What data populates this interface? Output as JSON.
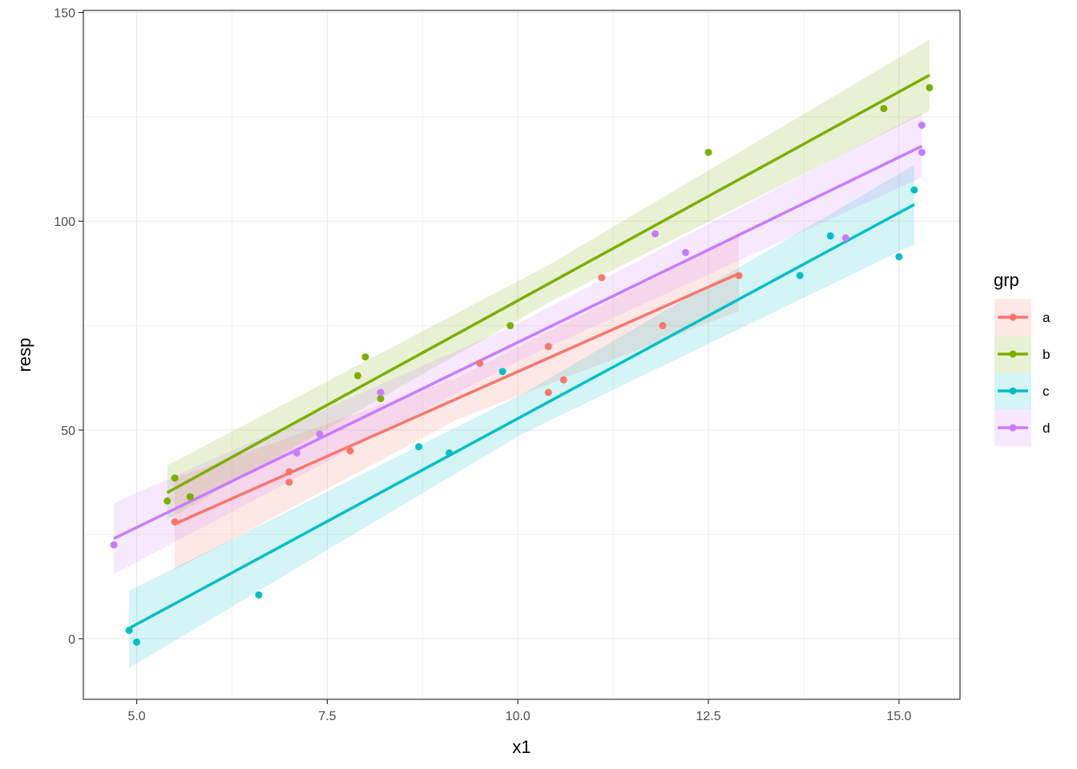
{
  "chart_data": {
    "type": "scatter",
    "title": "",
    "xlabel": "x1",
    "ylabel": "resp",
    "xlim": [
      4.3,
      15.8
    ],
    "ylim": [
      -14.5,
      150.5
    ],
    "xticks": [
      5.0,
      7.5,
      10.0,
      12.5,
      15.0
    ],
    "xtick_labels": [
      "5.0",
      "7.5",
      "10.0",
      "12.5",
      "15.0"
    ],
    "yticks": [
      0,
      50,
      100,
      150
    ],
    "ytick_labels": [
      "0",
      "50",
      "100",
      "150"
    ],
    "grid": true,
    "legend": {
      "title": "grp",
      "position": "right"
    },
    "series": [
      {
        "name": "a",
        "color": "#F8766D",
        "points": [
          [
            5.5,
            28
          ],
          [
            7.0,
            37.5
          ],
          [
            7.0,
            40
          ],
          [
            7.8,
            45
          ],
          [
            9.5,
            66
          ],
          [
            10.4,
            70
          ],
          [
            10.4,
            59
          ],
          [
            10.6,
            62
          ],
          [
            11.1,
            86.5
          ],
          [
            11.9,
            75
          ],
          [
            12.9,
            87
          ]
        ],
        "fit": {
          "x": [
            5.5,
            12.9
          ],
          "y": [
            27.5,
            87.5
          ]
        },
        "band": {
          "x": [
            5.5,
            9.2,
            12.9
          ],
          "lower": [
            16.5,
            52.5,
            78.5
          ],
          "upper": [
            38.5,
            62.5,
            96.5
          ]
        }
      },
      {
        "name": "b",
        "color": "#7CAE00",
        "points": [
          [
            5.4,
            33
          ],
          [
            5.5,
            38.5
          ],
          [
            5.7,
            34
          ],
          [
            7.9,
            63
          ],
          [
            8.0,
            67.5
          ],
          [
            8.2,
            57.5
          ],
          [
            9.9,
            75
          ],
          [
            12.5,
            116.5
          ],
          [
            14.8,
            127
          ],
          [
            15.4,
            132
          ]
        ],
        "fit": {
          "x": [
            5.4,
            15.4
          ],
          "y": [
            35,
            135
          ]
        },
        "band": {
          "x": [
            5.4,
            10.4,
            15.4
          ],
          "lower": [
            28.5,
            80.5,
            126.5
          ],
          "upper": [
            41.5,
            89.5,
            143.5
          ]
        }
      },
      {
        "name": "c",
        "color": "#00BFC4",
        "points": [
          [
            4.9,
            2
          ],
          [
            5.0,
            -0.8
          ],
          [
            6.6,
            10.5
          ],
          [
            8.7,
            46
          ],
          [
            9.1,
            44.5
          ],
          [
            9.8,
            64
          ],
          [
            13.7,
            87
          ],
          [
            14.1,
            96.5
          ],
          [
            15.0,
            91.5
          ],
          [
            15.2,
            107.5
          ]
        ],
        "fit": {
          "x": [
            4.9,
            15.2
          ],
          "y": [
            2.5,
            104
          ]
        },
        "band": {
          "x": [
            4.9,
            10.05,
            15.2
          ],
          "lower": [
            -7,
            49,
            94.5
          ],
          "upper": [
            11.5,
            58.5,
            113.5
          ]
        }
      },
      {
        "name": "d",
        "color": "#C77CFF",
        "points": [
          [
            4.7,
            22.5
          ],
          [
            7.1,
            44.5
          ],
          [
            7.4,
            49
          ],
          [
            8.2,
            59
          ],
          [
            11.8,
            97
          ],
          [
            12.2,
            92.5
          ],
          [
            14.3,
            96
          ],
          [
            15.3,
            123
          ],
          [
            15.3,
            116.5
          ]
        ],
        "fit": {
          "x": [
            4.7,
            15.3
          ],
          "y": [
            24,
            118
          ]
        },
        "band": {
          "x": [
            4.7,
            10.0,
            15.3
          ],
          "lower": [
            15.5,
            66.5,
            110.5
          ],
          "upper": [
            32.5,
            75.5,
            126
          ]
        }
      }
    ]
  }
}
